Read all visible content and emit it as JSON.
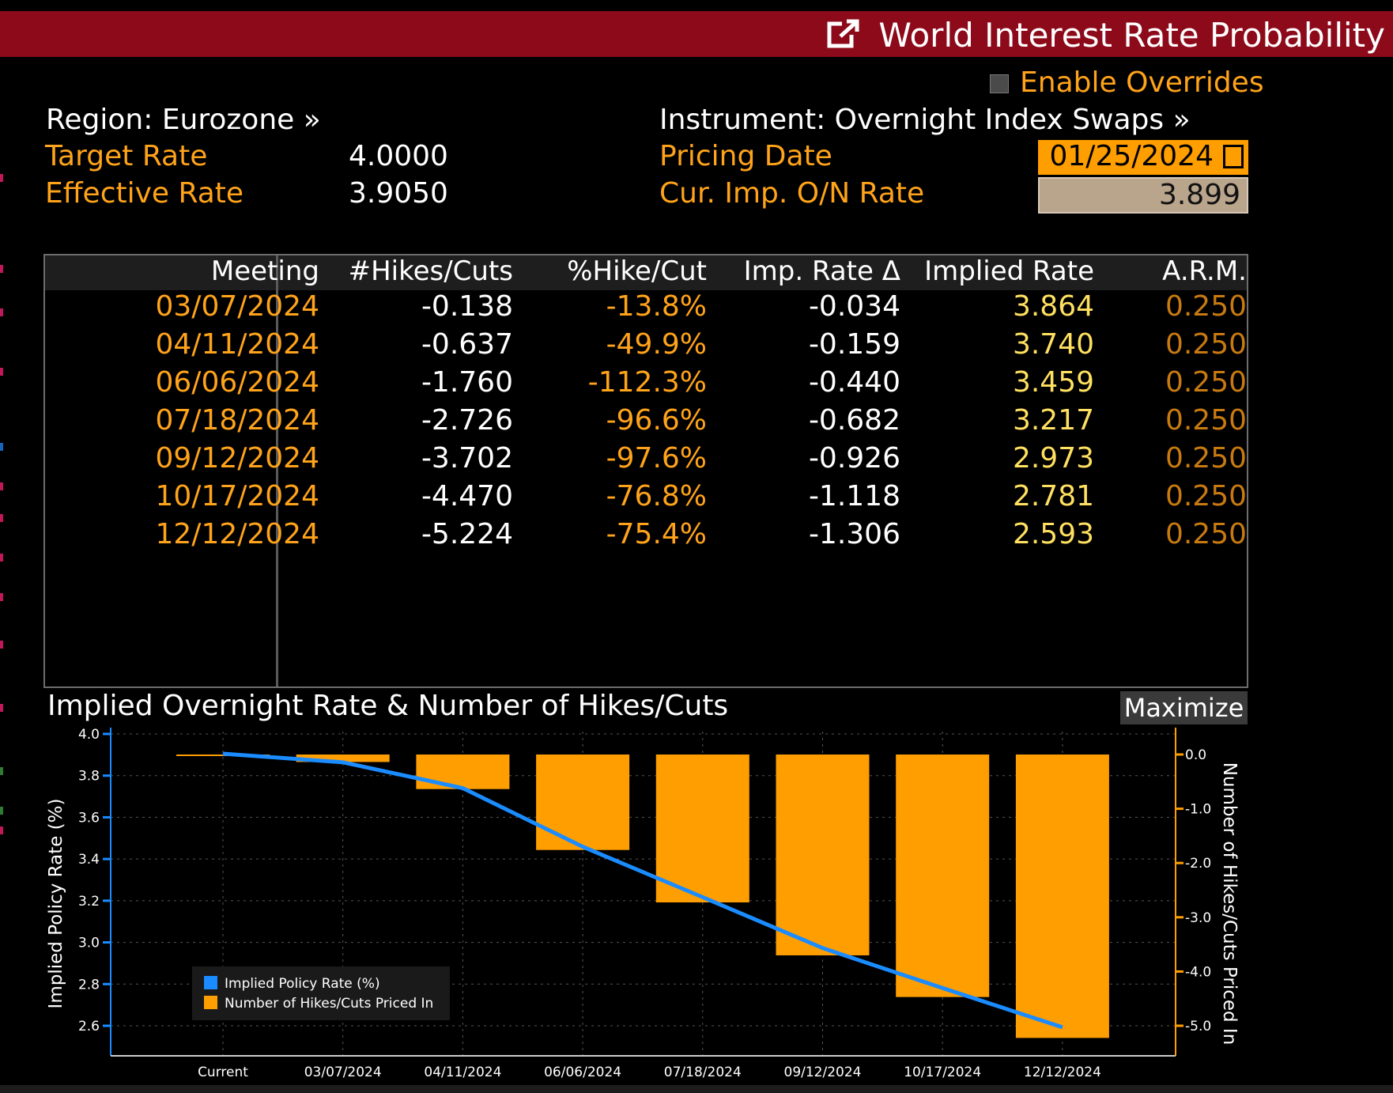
{
  "window": {
    "title": "World Interest Rate Probability"
  },
  "overrides": {
    "label": "Enable Overrides"
  },
  "region": {
    "text": "Region: Eurozone »"
  },
  "instrument": {
    "text": "Instrument: Overnight Index Swaps »"
  },
  "target_rate": {
    "label": "Target Rate",
    "value": "4.0000"
  },
  "effective_rate": {
    "label": "Effective Rate",
    "value": "3.9050"
  },
  "pricing_date": {
    "label": "Pricing Date",
    "value": "01/25/2024"
  },
  "cur_imp_rate": {
    "label": "Cur. Imp. O/N Rate",
    "value": "3.899"
  },
  "table": {
    "headers": [
      "Meeting",
      "#Hikes/Cuts",
      "%Hike/Cut",
      "Imp. Rate Δ",
      "Implied Rate",
      "A.R.M."
    ],
    "rows": [
      [
        "03/07/2024",
        "-0.138",
        "-13.8%",
        "-0.034",
        "3.864",
        "0.250"
      ],
      [
        "04/11/2024",
        "-0.637",
        "-49.9%",
        "-0.159",
        "3.740",
        "0.250"
      ],
      [
        "06/06/2024",
        "-1.760",
        "-112.3%",
        "-0.440",
        "3.459",
        "0.250"
      ],
      [
        "07/18/2024",
        "-2.726",
        "-96.6%",
        "-0.682",
        "3.217",
        "0.250"
      ],
      [
        "09/12/2024",
        "-3.702",
        "-97.6%",
        "-0.926",
        "2.973",
        "0.250"
      ],
      [
        "10/17/2024",
        "-4.470",
        "-76.8%",
        "-1.118",
        "2.781",
        "0.250"
      ],
      [
        "12/12/2024",
        "-5.224",
        "-75.4%",
        "-1.306",
        "2.593",
        "0.250"
      ]
    ]
  },
  "chart_panel": {
    "title": "Implied Overnight Rate & Number of Hikes/Cuts",
    "maximize_label": "Maximize"
  },
  "chart_data": {
    "type": "bar",
    "categories": [
      "Current",
      "03/07/2024",
      "04/11/2024",
      "06/06/2024",
      "07/18/2024",
      "09/12/2024",
      "10/17/2024",
      "12/12/2024"
    ],
    "series": [
      {
        "name": "Implied Policy Rate (%)",
        "type": "line",
        "axis": "left",
        "color": "#1a8cff",
        "values": [
          3.905,
          3.864,
          3.74,
          3.459,
          3.217,
          2.973,
          2.781,
          2.593
        ]
      },
      {
        "name": "Number of Hikes/Cuts Priced In",
        "type": "bar",
        "axis": "right",
        "color": "#ff9e00",
        "values": [
          0,
          -0.138,
          -0.637,
          -1.76,
          -2.726,
          -3.702,
          -4.47,
          -5.224
        ]
      }
    ],
    "ylabel": "Implied Policy Rate (%)",
    "ylabel_right": "Number of Hikes/Cuts Priced In",
    "ylim": [
      2.6,
      4.0
    ],
    "yticks": [
      "4.0",
      "3.8",
      "3.6",
      "3.4",
      "3.2",
      "3.0",
      "2.8",
      "2.6"
    ],
    "y2lim": [
      -5.0,
      0.0
    ],
    "y2ticks": [
      "0.0",
      "-1.0",
      "-2.0",
      "-3.0",
      "-4.0",
      "-5.0"
    ],
    "grid": true,
    "legend_position": "bottom-left"
  }
}
